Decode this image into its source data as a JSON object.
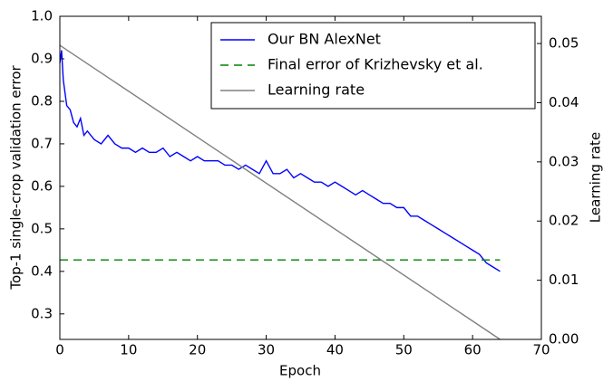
{
  "chart_data": {
    "type": "line",
    "xlabel": "Epoch",
    "ylabel": "Top-1 single-crop validation error",
    "y2label": "Learning rate",
    "xlim": [
      0,
      70
    ],
    "xticks": [
      0,
      10,
      20,
      30,
      40,
      50,
      60,
      70
    ],
    "ylim": [
      0.24,
      1.0
    ],
    "yticks": [
      0.3,
      0.4,
      0.5,
      0.6,
      0.7,
      0.8,
      0.9,
      {
        "value": 1,
        "label": "1.0"
      }
    ],
    "y2lim": [
      0,
      0.0546
    ],
    "y2ticks": [
      {
        "value": 0,
        "label": "0.00"
      },
      {
        "value": 0.01,
        "label": "0.01"
      },
      {
        "value": 0.02,
        "label": "0.02"
      },
      {
        "value": 0.03,
        "label": "0.03"
      },
      {
        "value": 0.04,
        "label": "0.04"
      },
      {
        "value": 0.05,
        "label": "0.05"
      }
    ],
    "legend": "upper right",
    "series": [
      {
        "name": "Our BN AlexNet",
        "color": "#0000ff",
        "dash": "solid",
        "x": [
          0,
          0.25,
          0.5,
          1,
          1.5,
          2,
          2.5,
          3,
          3.5,
          4,
          5,
          6,
          7,
          8,
          9,
          10,
          11,
          12,
          13,
          14,
          15,
          16,
          17,
          18,
          19,
          20,
          21,
          22,
          23,
          24,
          25,
          26,
          27,
          28,
          29,
          30,
          31,
          32,
          33,
          34,
          35,
          36,
          37,
          38,
          39,
          40,
          41,
          42,
          43,
          44,
          45,
          46,
          47,
          48,
          49,
          50,
          51,
          52,
          53,
          54,
          55,
          56,
          57,
          58,
          59,
          60,
          61,
          62,
          63,
          64
        ],
        "values": [
          0.89,
          0.92,
          0.85,
          0.79,
          0.78,
          0.75,
          0.74,
          0.76,
          0.72,
          0.73,
          0.71,
          0.7,
          0.72,
          0.7,
          0.69,
          0.69,
          0.68,
          0.69,
          0.68,
          0.68,
          0.69,
          0.67,
          0.68,
          0.67,
          0.66,
          0.67,
          0.66,
          0.66,
          0.66,
          0.65,
          0.65,
          0.64,
          0.65,
          0.64,
          0.63,
          0.66,
          0.63,
          0.63,
          0.64,
          0.62,
          0.63,
          0.62,
          0.61,
          0.61,
          0.6,
          0.61,
          0.6,
          0.59,
          0.58,
          0.59,
          0.58,
          0.57,
          0.56,
          0.56,
          0.55,
          0.55,
          0.53,
          0.53,
          0.52,
          0.51,
          0.5,
          0.49,
          0.48,
          0.47,
          0.46,
          0.45,
          0.44,
          0.42,
          0.41,
          0.4
        ]
      },
      {
        "name": "Final error of Krizhevsky et al.",
        "color": "#008000",
        "dash": "dashed",
        "x": [
          0,
          64
        ],
        "values": [
          0.427,
          0.427
        ]
      },
      {
        "name": "Learning rate",
        "color": "#808080",
        "dash": "solid",
        "axis": "y2",
        "x": [
          0,
          64
        ],
        "values": [
          0.0497,
          0
        ]
      }
    ]
  }
}
